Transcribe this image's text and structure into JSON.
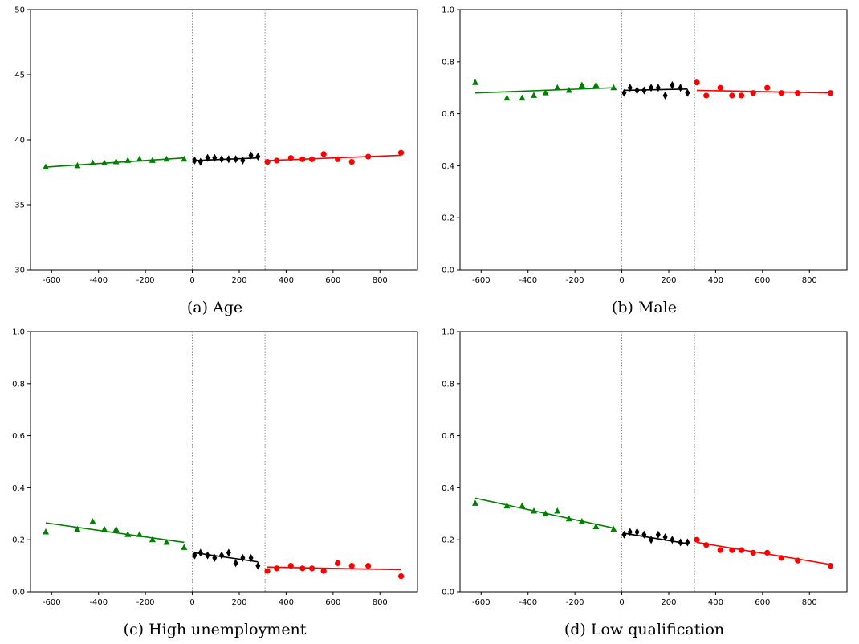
{
  "colors": {
    "left": "#008000",
    "middle": "#000000",
    "right": "#ff0000",
    "vline": "#888888"
  },
  "chart_data": [
    {
      "type": "scatter",
      "caption": "(a) Age",
      "xlim": [
        -690,
        960
      ],
      "ylim": [
        30,
        50
      ],
      "xticks": [
        -600,
        -400,
        -200,
        0,
        200,
        400,
        600,
        800
      ],
      "yticks": [
        30,
        35,
        40,
        45,
        50
      ],
      "ytick_labels": [
        "30",
        "35",
        "40",
        "45",
        "50"
      ],
      "vlines": [
        0,
        310
      ],
      "series": [
        {
          "segment": "left",
          "marker": "triangle",
          "x": [
            -625,
            -490,
            -425,
            -375,
            -325,
            -275,
            -225,
            -170,
            -110,
            -35
          ],
          "y": [
            37.9,
            38.0,
            38.2,
            38.2,
            38.3,
            38.4,
            38.5,
            38.4,
            38.5,
            38.5
          ],
          "fit": [
            [
              -625,
              37.9
            ],
            [
              -35,
              38.6
            ]
          ]
        },
        {
          "segment": "middle",
          "marker": "diamond",
          "x": [
            10,
            35,
            65,
            95,
            125,
            155,
            185,
            215,
            250,
            280
          ],
          "y": [
            38.4,
            38.3,
            38.6,
            38.6,
            38.5,
            38.5,
            38.5,
            38.4,
            38.8,
            38.7
          ],
          "fit": [
            [
              10,
              38.4
            ],
            [
              280,
              38.6
            ]
          ]
        },
        {
          "segment": "right",
          "marker": "circle",
          "x": [
            320,
            360,
            420,
            470,
            510,
            560,
            620,
            680,
            750,
            890
          ],
          "y": [
            38.3,
            38.4,
            38.6,
            38.5,
            38.5,
            38.9,
            38.5,
            38.3,
            38.7,
            39.0
          ],
          "fit": [
            [
              320,
              38.4
            ],
            [
              890,
              38.8
            ]
          ]
        }
      ]
    },
    {
      "type": "scatter",
      "caption": "(b) Male",
      "xlim": [
        -690,
        960
      ],
      "ylim": [
        0,
        1
      ],
      "xticks": [
        -600,
        -400,
        -200,
        0,
        200,
        400,
        600,
        800
      ],
      "yticks": [
        0,
        0.2,
        0.4,
        0.6,
        0.8,
        1.0
      ],
      "ytick_labels": [
        "0.0",
        "0.2",
        "0.4",
        "0.6",
        "0.8",
        "1.0"
      ],
      "vlines": [
        0,
        310
      ],
      "series": [
        {
          "segment": "left",
          "marker": "triangle",
          "x": [
            -625,
            -490,
            -425,
            -375,
            -325,
            -275,
            -225,
            -170,
            -110,
            -35
          ],
          "y": [
            0.72,
            0.66,
            0.66,
            0.67,
            0.68,
            0.7,
            0.69,
            0.71,
            0.71,
            0.7
          ],
          "fit": [
            [
              -625,
              0.68
            ],
            [
              -35,
              0.7
            ]
          ]
        },
        {
          "segment": "middle",
          "marker": "diamond",
          "x": [
            10,
            35,
            65,
            95,
            125,
            155,
            185,
            215,
            250,
            280
          ],
          "y": [
            0.68,
            0.7,
            0.69,
            0.69,
            0.7,
            0.7,
            0.67,
            0.71,
            0.7,
            0.68
          ],
          "fit": [
            [
              10,
              0.69
            ],
            [
              280,
              0.695
            ]
          ]
        },
        {
          "segment": "right",
          "marker": "circle",
          "x": [
            320,
            360,
            420,
            470,
            510,
            560,
            620,
            680,
            750,
            890
          ],
          "y": [
            0.72,
            0.67,
            0.7,
            0.67,
            0.67,
            0.68,
            0.7,
            0.68,
            0.68,
            0.68
          ],
          "fit": [
            [
              320,
              0.69
            ],
            [
              890,
              0.68
            ]
          ]
        }
      ]
    },
    {
      "type": "scatter",
      "caption": "(c) High unemployment",
      "xlim": [
        -690,
        960
      ],
      "ylim": [
        0,
        1
      ],
      "xticks": [
        -600,
        -400,
        -200,
        0,
        200,
        400,
        600,
        800
      ],
      "yticks": [
        0,
        0.2,
        0.4,
        0.6,
        0.8,
        1.0
      ],
      "ytick_labels": [
        "0.0",
        "0.2",
        "0.4",
        "0.6",
        "0.8",
        "1.0"
      ],
      "vlines": [
        0,
        310
      ],
      "series": [
        {
          "segment": "left",
          "marker": "triangle",
          "x": [
            -625,
            -490,
            -425,
            -375,
            -325,
            -275,
            -225,
            -170,
            -110,
            -35
          ],
          "y": [
            0.23,
            0.24,
            0.27,
            0.24,
            0.24,
            0.22,
            0.22,
            0.2,
            0.19,
            0.17
          ],
          "fit": [
            [
              -625,
              0.265
            ],
            [
              -35,
              0.19
            ]
          ]
        },
        {
          "segment": "middle",
          "marker": "diamond",
          "x": [
            10,
            35,
            65,
            95,
            125,
            155,
            185,
            215,
            250,
            280
          ],
          "y": [
            0.14,
            0.15,
            0.14,
            0.13,
            0.14,
            0.15,
            0.11,
            0.13,
            0.13,
            0.1
          ],
          "fit": [
            [
              10,
              0.15
            ],
            [
              280,
              0.115
            ]
          ]
        },
        {
          "segment": "right",
          "marker": "circle",
          "x": [
            320,
            360,
            420,
            470,
            510,
            560,
            620,
            680,
            750,
            890
          ],
          "y": [
            0.08,
            0.09,
            0.1,
            0.09,
            0.09,
            0.08,
            0.11,
            0.1,
            0.1,
            0.06
          ],
          "fit": [
            [
              320,
              0.095
            ],
            [
              890,
              0.085
            ]
          ]
        }
      ]
    },
    {
      "type": "scatter",
      "caption": "(d) Low qualification",
      "xlim": [
        -690,
        960
      ],
      "ylim": [
        0,
        1
      ],
      "xticks": [
        -600,
        -400,
        -200,
        0,
        200,
        400,
        600,
        800
      ],
      "yticks": [
        0,
        0.2,
        0.4,
        0.6,
        0.8,
        1.0
      ],
      "ytick_labels": [
        "0.0",
        "0.2",
        "0.4",
        "0.6",
        "0.8",
        "1.0"
      ],
      "vlines": [
        0,
        310
      ],
      "series": [
        {
          "segment": "left",
          "marker": "triangle",
          "x": [
            -625,
            -490,
            -425,
            -375,
            -325,
            -275,
            -225,
            -170,
            -110,
            -35
          ],
          "y": [
            0.34,
            0.33,
            0.33,
            0.31,
            0.3,
            0.31,
            0.28,
            0.27,
            0.25,
            0.24
          ],
          "fit": [
            [
              -625,
              0.36
            ],
            [
              -35,
              0.245
            ]
          ]
        },
        {
          "segment": "middle",
          "marker": "diamond",
          "x": [
            10,
            35,
            65,
            95,
            125,
            155,
            185,
            215,
            250,
            280
          ],
          "y": [
            0.22,
            0.23,
            0.23,
            0.22,
            0.2,
            0.22,
            0.21,
            0.2,
            0.19,
            0.19
          ],
          "fit": [
            [
              10,
              0.225
            ],
            [
              280,
              0.185
            ]
          ]
        },
        {
          "segment": "right",
          "marker": "circle",
          "x": [
            320,
            360,
            420,
            470,
            510,
            560,
            620,
            680,
            750,
            890
          ],
          "y": [
            0.2,
            0.18,
            0.16,
            0.16,
            0.16,
            0.15,
            0.15,
            0.13,
            0.12,
            0.1
          ],
          "fit": [
            [
              320,
              0.19
            ],
            [
              890,
              0.105
            ]
          ]
        }
      ]
    }
  ]
}
